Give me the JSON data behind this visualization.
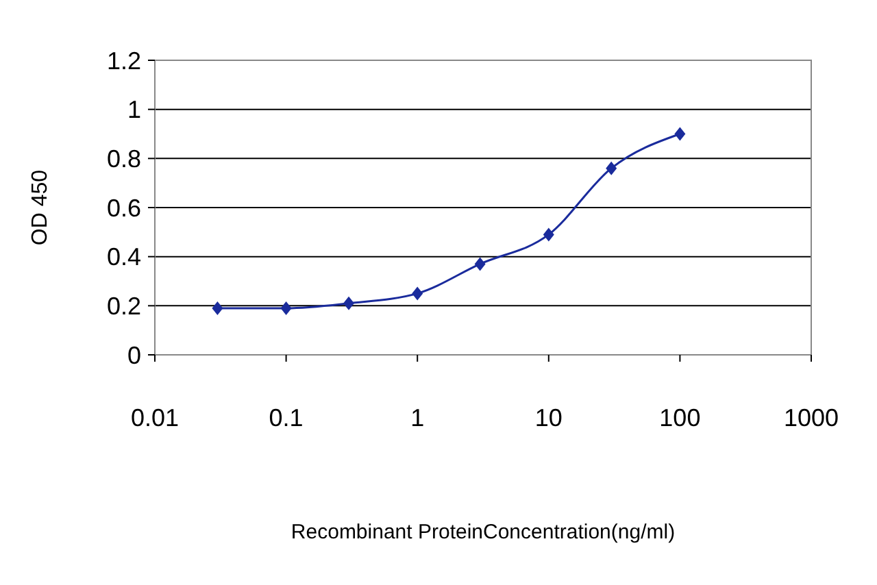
{
  "chart_data": {
    "type": "line",
    "xlabel": "Recombinant ProteinConcentration(ng/ml)",
    "ylabel": "OD 450",
    "log": "x",
    "x": [
      0.03,
      0.1,
      0.3,
      1,
      3,
      10,
      30,
      100
    ],
    "series": [
      {
        "color": "#1a2b9c",
        "values": [
          0.19,
          0.19,
          0.21,
          0.25,
          0.37,
          0.49,
          0.76,
          0.9
        ]
      }
    ],
    "xlim": [
      0.01,
      1000
    ],
    "xticks": [
      0.01,
      0.1,
      1,
      10,
      100,
      1000
    ],
    "ylim": [
      0,
      1.2
    ],
    "yticks": [
      0,
      0.2,
      0.4,
      0.6,
      0.8,
      1,
      1.2
    ],
    "grid": "y",
    "marker": "diamond",
    "line_style": "solid"
  }
}
